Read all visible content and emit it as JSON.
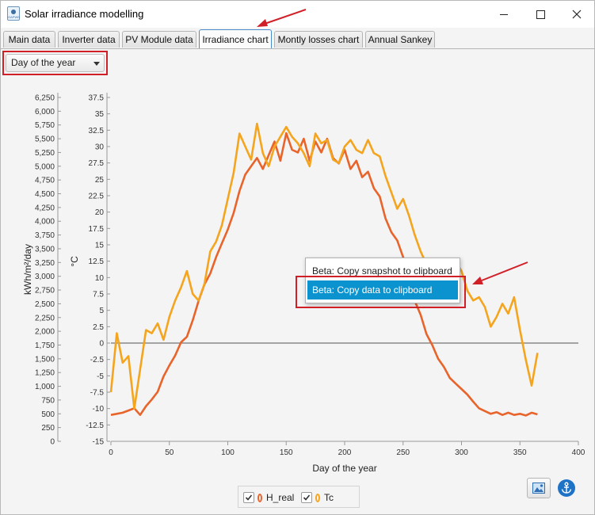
{
  "window": {
    "title": "Solar irradiance modelling",
    "app_icon_text": "GAPWN"
  },
  "tabs": [
    {
      "label": "Main data",
      "active": false
    },
    {
      "label": "Inverter data",
      "active": false
    },
    {
      "label": "PV Module data",
      "active": false
    },
    {
      "label": "Irradiance chart",
      "active": true
    },
    {
      "label": "Montly losses chart",
      "active": false
    },
    {
      "label": "Annual Sankey",
      "active": false
    }
  ],
  "view_selector": {
    "value": "Day of the year"
  },
  "context_menu": {
    "items": [
      {
        "label": "Beta: Copy snapshot to clipboard",
        "highlighted": false
      },
      {
        "label": "Beta: Copy data to clipboard",
        "highlighted": true
      }
    ]
  },
  "legend": [
    {
      "label": "H_real",
      "checked": true,
      "color": "#e8642a"
    },
    {
      "label": "Tc",
      "checked": true,
      "color": "#f4a51d"
    }
  ],
  "icons": {
    "image": "image-icon",
    "anchor": "anchor-icon",
    "close": "close-icon"
  },
  "chart_data": {
    "type": "line",
    "xlabel": "Day of the year",
    "ylabel_left": "kWh/m²/day",
    "ylabel_right": "°C",
    "x_ticks": [
      "0",
      "50",
      "100",
      "150",
      "200",
      "250",
      "300",
      "350",
      "400"
    ],
    "y_left_ticks": [
      "0",
      "250",
      "500",
      "750",
      "1,000",
      "1,250",
      "1,500",
      "1,750",
      "2,000",
      "2,250",
      "2,500",
      "2,750",
      "3,000",
      "3,250",
      "3,500",
      "3,750",
      "4,000",
      "4,250",
      "4,500",
      "4,750",
      "5,000",
      "5,250",
      "5,500",
      "5,750",
      "6,000",
      "6,250"
    ],
    "y_right_ticks": [
      "-15",
      "-12.5",
      "-10",
      "-7.5",
      "-5",
      "-2.5",
      "0",
      "2.5",
      "5",
      "7.5",
      "10",
      "12.5",
      "15",
      "17.5",
      "20",
      "22.5",
      "25",
      "27.5",
      "30",
      "32.5",
      "35",
      "37.5"
    ],
    "xlim": [
      0,
      400
    ],
    "ylim_left": [
      0,
      6250
    ],
    "ylim_right": [
      -15,
      37.5
    ],
    "series": [
      {
        "name": "H_real",
        "color": "#e8642a",
        "x": [
          0,
          5,
          10,
          15,
          20,
          25,
          30,
          35,
          40,
          45,
          50,
          55,
          60,
          65,
          70,
          75,
          80,
          85,
          90,
          95,
          100,
          105,
          110,
          115,
          120,
          125,
          130,
          135,
          140,
          145,
          150,
          155,
          160,
          165,
          170,
          175,
          180,
          185,
          190,
          195,
          200,
          205,
          210,
          215,
          220,
          225,
          230,
          235,
          240,
          245,
          250,
          255,
          260,
          265,
          270,
          275,
          280,
          285,
          290,
          295,
          300,
          305,
          310,
          315,
          320,
          325,
          330,
          335,
          340,
          345,
          350,
          355,
          360,
          365
        ],
        "values": [
          480,
          500,
          520,
          560,
          600,
          480,
          640,
          760,
          900,
          1180,
          1380,
          1560,
          1800,
          1900,
          2200,
          2550,
          2850,
          3050,
          3350,
          3600,
          3850,
          4150,
          4550,
          4850,
          5000,
          5150,
          4950,
          5200,
          5450,
          5100,
          5600,
          5300,
          5250,
          5500,
          5100,
          5450,
          5250,
          5500,
          5150,
          5050,
          5300,
          4950,
          5100,
          4800,
          4900,
          4600,
          4450,
          4050,
          3800,
          3650,
          3350,
          3000,
          2550,
          2300,
          1950,
          1750,
          1500,
          1350,
          1150,
          1050,
          950,
          850,
          720,
          600,
          550,
          500,
          530,
          480,
          520,
          480,
          500,
          470,
          520,
          490
        ]
      },
      {
        "name": "Tc",
        "color": "#f4a51d",
        "x": [
          0,
          5,
          10,
          15,
          20,
          25,
          30,
          35,
          40,
          45,
          50,
          55,
          60,
          65,
          70,
          75,
          80,
          85,
          90,
          95,
          100,
          105,
          110,
          115,
          120,
          125,
          130,
          135,
          140,
          145,
          150,
          155,
          160,
          165,
          170,
          175,
          180,
          185,
          190,
          195,
          200,
          205,
          210,
          215,
          220,
          225,
          230,
          235,
          240,
          245,
          250,
          255,
          260,
          265,
          270,
          275,
          280,
          285,
          290,
          295,
          300,
          305,
          310,
          315,
          320,
          325,
          330,
          335,
          340,
          345,
          350,
          355,
          360,
          365
        ],
        "values": [
          -7.5,
          1.5,
          -3,
          -2,
          -10,
          -4,
          2,
          1.5,
          3,
          0.5,
          4,
          6.5,
          8.5,
          11,
          7.5,
          6.5,
          9,
          14,
          15.5,
          18,
          22,
          26,
          32,
          30,
          28,
          33.5,
          29,
          27,
          30,
          31.5,
          33,
          31.5,
          30.5,
          29,
          27,
          32,
          30.5,
          31,
          28,
          27.5,
          30,
          31,
          29.5,
          29,
          31,
          29,
          28.5,
          25.5,
          23,
          20.5,
          22,
          19.5,
          16.5,
          14,
          12,
          11.5,
          9.5,
          11,
          8,
          12.5,
          11,
          8,
          6.5,
          7,
          5.5,
          2.5,
          4,
          6,
          4.5,
          7,
          2,
          -2.5,
          -6.5,
          -1.5
        ]
      }
    ]
  }
}
